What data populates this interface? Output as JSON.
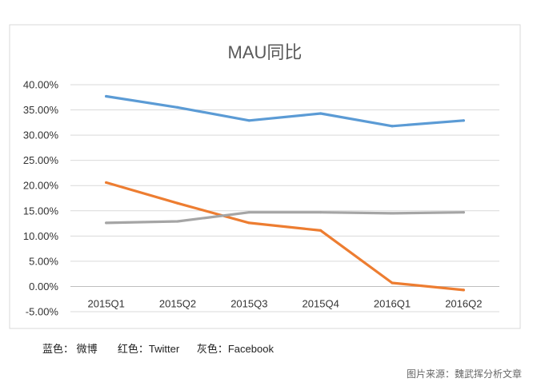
{
  "chart_data": {
    "type": "line",
    "title": "MAU同比",
    "xlabel": "",
    "ylabel": "",
    "categories": [
      "2015Q1",
      "2015Q2",
      "2015Q3",
      "2015Q4",
      "2016Q1",
      "2016Q2"
    ],
    "ylim": [
      -0.05,
      0.4
    ],
    "yticks": [
      "40.00%",
      "35.00%",
      "30.00%",
      "25.00%",
      "20.00%",
      "15.00%",
      "10.00%",
      "5.00%",
      "0.00%",
      "-5.00%"
    ],
    "grid": true,
    "series": [
      {
        "color": "#5b9bd5",
        "values": [
          0.377,
          0.355,
          0.329,
          0.343,
          0.318,
          0.329
        ]
      },
      {
        "color": "#ed7d31",
        "values": [
          0.206,
          0.165,
          0.126,
          0.111,
          0.007,
          -0.007
        ]
      },
      {
        "color": "#a5a5a5",
        "values": [
          0.126,
          0.129,
          0.147,
          0.147,
          0.145,
          0.147
        ]
      }
    ]
  },
  "legend_note": "蓝色： 微博       红色：Twitter      灰色：Facebook",
  "source_note": "图片来源：魏武挥分析文章"
}
